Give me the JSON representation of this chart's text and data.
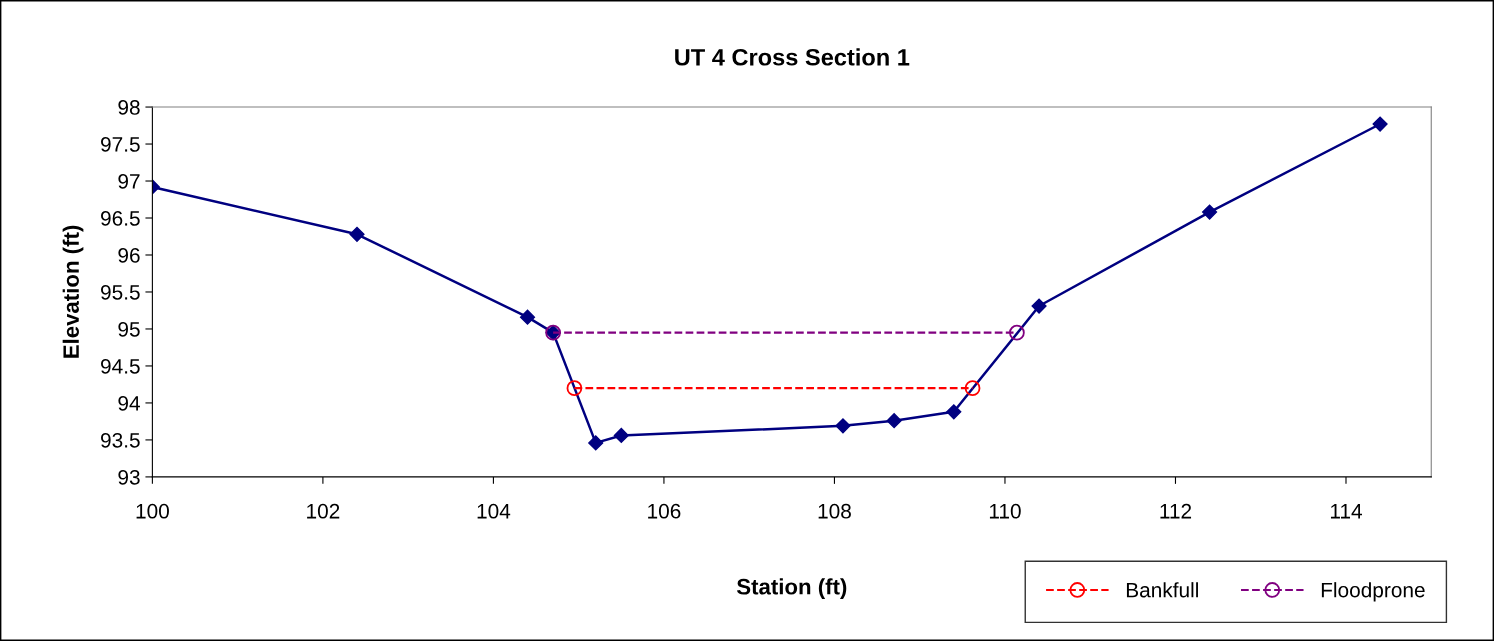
{
  "chart_data": {
    "type": "line",
    "title": "UT 4 Cross Section 1",
    "xlabel": "Station (ft)",
    "ylabel": "Elevation (ft)",
    "series": [
      {
        "color": "#000080",
        "marker": "diamond",
        "line_style": "solid",
        "x": [
          100,
          102.4,
          104.4,
          104.7,
          105.2,
          105.5,
          108.1,
          108.7,
          109.4,
          110.4,
          112.4,
          114.4
        ],
        "values": [
          96.92,
          96.28,
          95.16,
          94.95,
          93.46,
          93.56,
          93.69,
          93.76,
          93.88,
          95.31,
          96.58,
          97.77
        ]
      },
      {
        "name": "Bankfull",
        "color": "#ff0000",
        "marker": "circle",
        "line_style": "dashed",
        "x": [
          104.95,
          109.62
        ],
        "values": [
          94.2,
          94.2
        ]
      },
      {
        "name": "Floodprone",
        "color": "#800080",
        "marker": "circle",
        "line_style": "dashed",
        "x": [
          104.7,
          110.14
        ],
        "values": [
          94.95,
          94.95
        ]
      }
    ],
    "xlim": [
      100,
      115
    ],
    "xticks": [
      100,
      102,
      104,
      106,
      108,
      110,
      112,
      114
    ],
    "ylim": [
      93,
      98
    ],
    "yticks": [
      93,
      93.5,
      94,
      94.5,
      95,
      95.5,
      96,
      96.5,
      97,
      97.5,
      98
    ],
    "grid": false,
    "legend": "bottom right"
  }
}
